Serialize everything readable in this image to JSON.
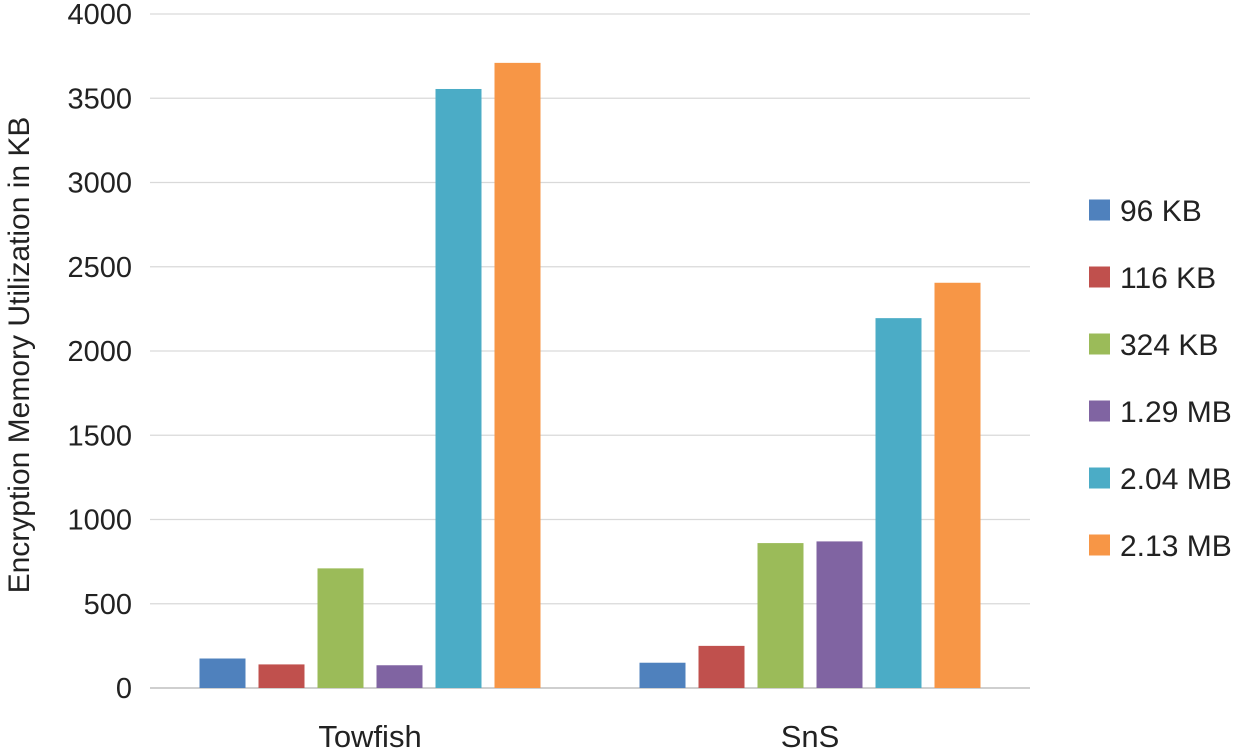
{
  "chart_data": {
    "type": "bar",
    "title": "",
    "xlabel": "",
    "ylabel": "Encryption Memory Utilization in KB",
    "ylim": [
      0,
      4000
    ],
    "yticks": [
      0,
      500,
      1000,
      1500,
      2000,
      2500,
      3000,
      3500,
      4000
    ],
    "grid": true,
    "legend_position": "right",
    "categories": [
      "Towfish",
      "SnS"
    ],
    "series": [
      {
        "name": "96 KB",
        "color": "#4f81bd",
        "values": [
          175,
          150
        ]
      },
      {
        "name": "116 KB",
        "color": "#c0504d",
        "values": [
          140,
          250
        ]
      },
      {
        "name": "324 KB",
        "color": "#9bbb59",
        "values": [
          710,
          860
        ]
      },
      {
        "name": "1.29 MB",
        "color": "#8064a2",
        "values": [
          135,
          870
        ]
      },
      {
        "name": "2.04 MB",
        "color": "#4bacc6",
        "values": [
          3555,
          2195
        ]
      },
      {
        "name": "2.13 MB",
        "color": "#f79646",
        "values": [
          3710,
          2405
        ]
      }
    ]
  }
}
